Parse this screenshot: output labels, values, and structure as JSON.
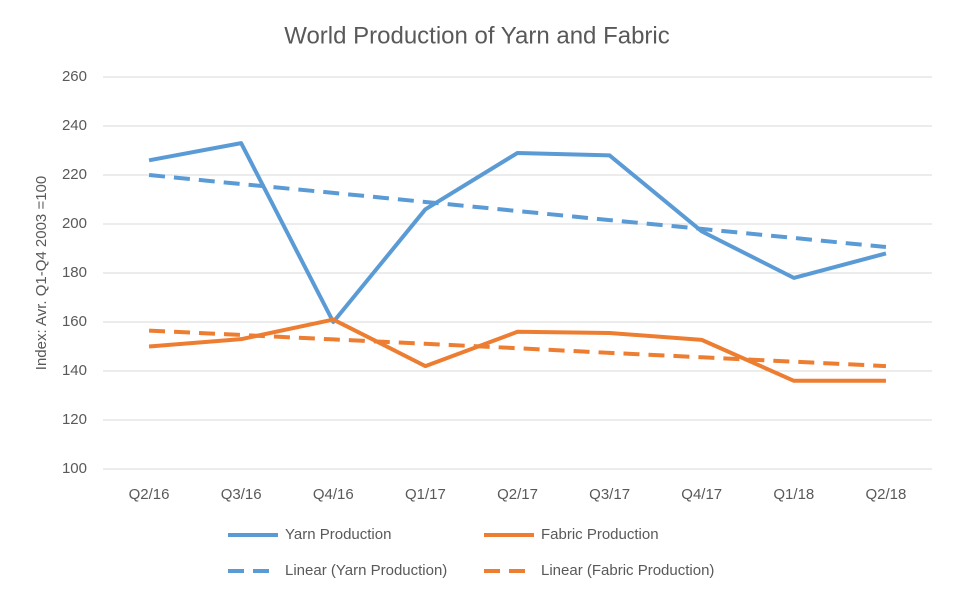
{
  "chart_data": {
    "type": "line",
    "title": "World Production of Yarn and Fabric",
    "y_label": "Index: Avr. Q1-Q4 2003 =100",
    "categories": [
      "Q2/16",
      "Q3/16",
      "Q4/16",
      "Q1/17",
      "Q2/17",
      "Q3/17",
      "Q4/17",
      "Q1/18",
      "Q2/18"
    ],
    "series": [
      {
        "name": "Yarn Production",
        "color": "#5b9bd5",
        "dashed": false,
        "values": [
          226,
          233,
          160,
          206,
          229,
          228,
          197,
          178,
          188
        ]
      },
      {
        "name": "Fabric Production",
        "color": "#ed7d31",
        "dashed": false,
        "values": [
          150,
          153,
          161,
          142,
          156,
          155.5,
          152.7,
          136,
          136
        ]
      },
      {
        "name": "Linear (Yarn Production)",
        "color": "#5b9bd5",
        "dashed": true,
        "values": [
          220,
          216.3,
          212.7,
          209,
          205.3,
          201.6,
          198,
          194.3,
          190.6
        ]
      },
      {
        "name": "Linear (Fabric Production)",
        "color": "#ed7d31",
        "dashed": true,
        "values": [
          156.5,
          154.7,
          152.9,
          151.1,
          149.3,
          147.4,
          145.6,
          143.8,
          142
        ]
      }
    ],
    "ylim": [
      100,
      260
    ],
    "yticks": [
      100,
      120,
      140,
      160,
      180,
      200,
      220,
      240,
      260
    ],
    "grid": true
  }
}
